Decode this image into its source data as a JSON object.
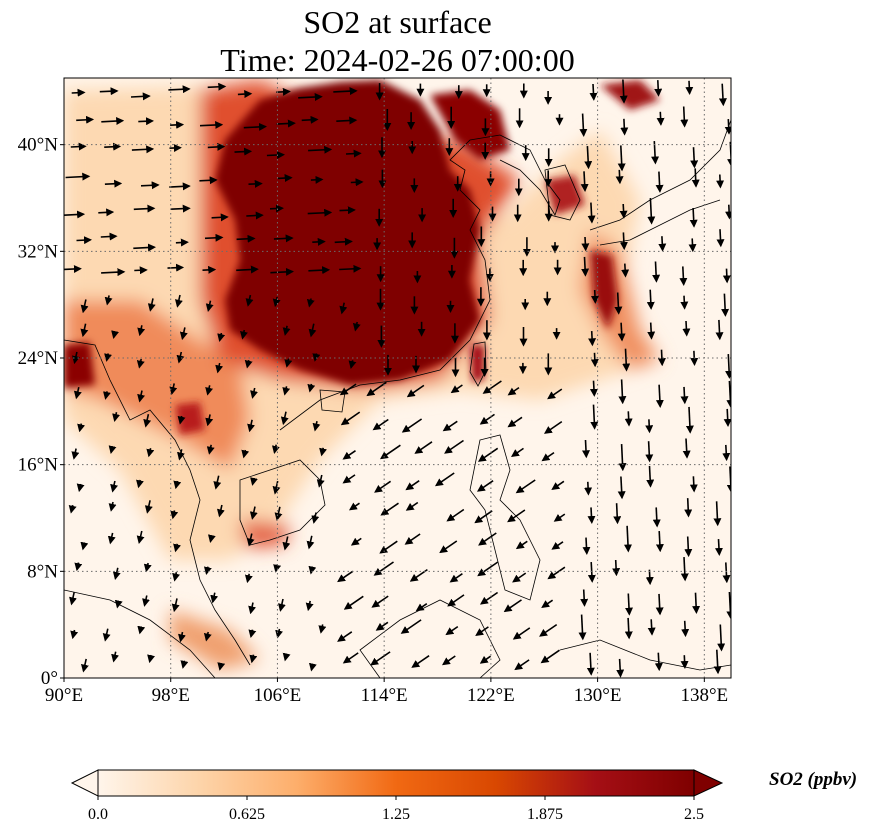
{
  "title": {
    "line1": "SO2 at surface",
    "line2": "Time: 2024-02-26 07:00:00"
  },
  "map": {
    "lon_range": [
      90,
      140
    ],
    "lat_range": [
      0,
      45
    ],
    "lon_ticks": [
      "90°E",
      "98°E",
      "106°E",
      "114°E",
      "122°E",
      "130°E",
      "138°E"
    ],
    "lat_ticks": [
      "0°",
      "8°N",
      "16°N",
      "24°N",
      "32°N",
      "40°N"
    ],
    "gridlines": true,
    "field": "SO2",
    "arrows": "wind vectors"
  },
  "colorbar": {
    "label": "SO2 (ppbv)",
    "min": 0.0,
    "max": 2.5,
    "ticks": [
      "0.0",
      "0.625",
      "1.25",
      "1.875",
      "2.5"
    ],
    "extend": "both",
    "colors": [
      "#fff5eb",
      "#fdd5ab",
      "#fdae6b",
      "#f16913",
      "#d94801",
      "#a50f15",
      "#7f0000"
    ]
  }
}
